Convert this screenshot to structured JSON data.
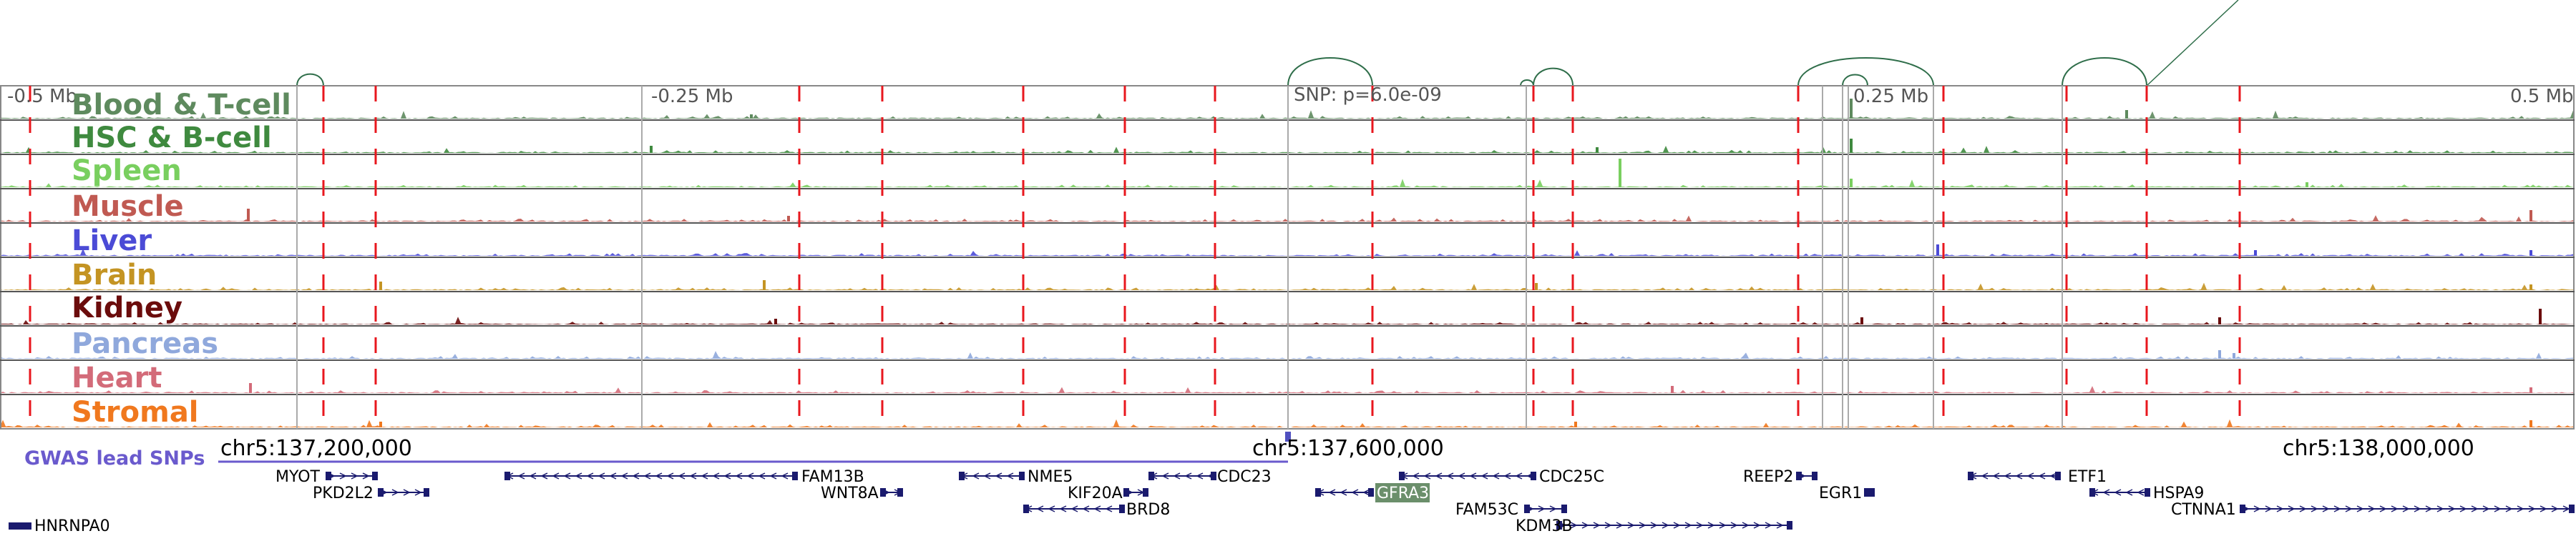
{
  "axis": {
    "left_label": "-0.5 Mb",
    "quarter_left_label": "-0.25 Mb",
    "snp_label": "SNP: p=6.0e-09",
    "quarter_right_label": "0.25 Mb",
    "right_label": "0.5 Mb"
  },
  "tracks": [
    {
      "name": "Blood & T-cell",
      "color": "#5e8a5e"
    },
    {
      "name": "HSC & B-cell",
      "color": "#3f8a3f"
    },
    {
      "name": "Spleen",
      "color": "#79cf5f"
    },
    {
      "name": "Muscle",
      "color": "#c05a52"
    },
    {
      "name": "Liver",
      "color": "#4b4bd6"
    },
    {
      "name": "Brain",
      "color": "#c49423"
    },
    {
      "name": "Kidney",
      "color": "#6b0c0c"
    },
    {
      "name": "Pancreas",
      "color": "#8fa8dc"
    },
    {
      "name": "Heart",
      "color": "#d36b79"
    },
    {
      "name": "Stromal",
      "color": "#f0781e"
    }
  ],
  "snp_track": {
    "label": "GWAS lead SNPs",
    "color": "#6a5acd"
  },
  "coordinates": [
    "chr5:137,200,000",
    "chr5:137,600,000",
    "chr5:138,000,000"
  ],
  "genes": [
    {
      "name": "MYOT"
    },
    {
      "name": "PKD2L2"
    },
    {
      "name": "FAM13B"
    },
    {
      "name": "WNT8A"
    },
    {
      "name": "NME5"
    },
    {
      "name": "KIF20A"
    },
    {
      "name": "BRD8"
    },
    {
      "name": "CDC23"
    },
    {
      "name": "GFRA3"
    },
    {
      "name": "CDC25C"
    },
    {
      "name": "FAM53C"
    },
    {
      "name": "KDM3B"
    },
    {
      "name": "REEP2"
    },
    {
      "name": "EGR1"
    },
    {
      "name": "ETF1"
    },
    {
      "name": "HSPA9"
    },
    {
      "name": "CTNNA1"
    },
    {
      "name": "HNRNPA0"
    }
  ],
  "highlighted_gene": "GFRA3",
  "colors": {
    "red_marker": "#e8171e",
    "gene": "#1a1a6e",
    "highlight_box": "#6b8f6b",
    "arc": "#2f6e4a",
    "gray_marker": "#aaaaaa"
  }
}
